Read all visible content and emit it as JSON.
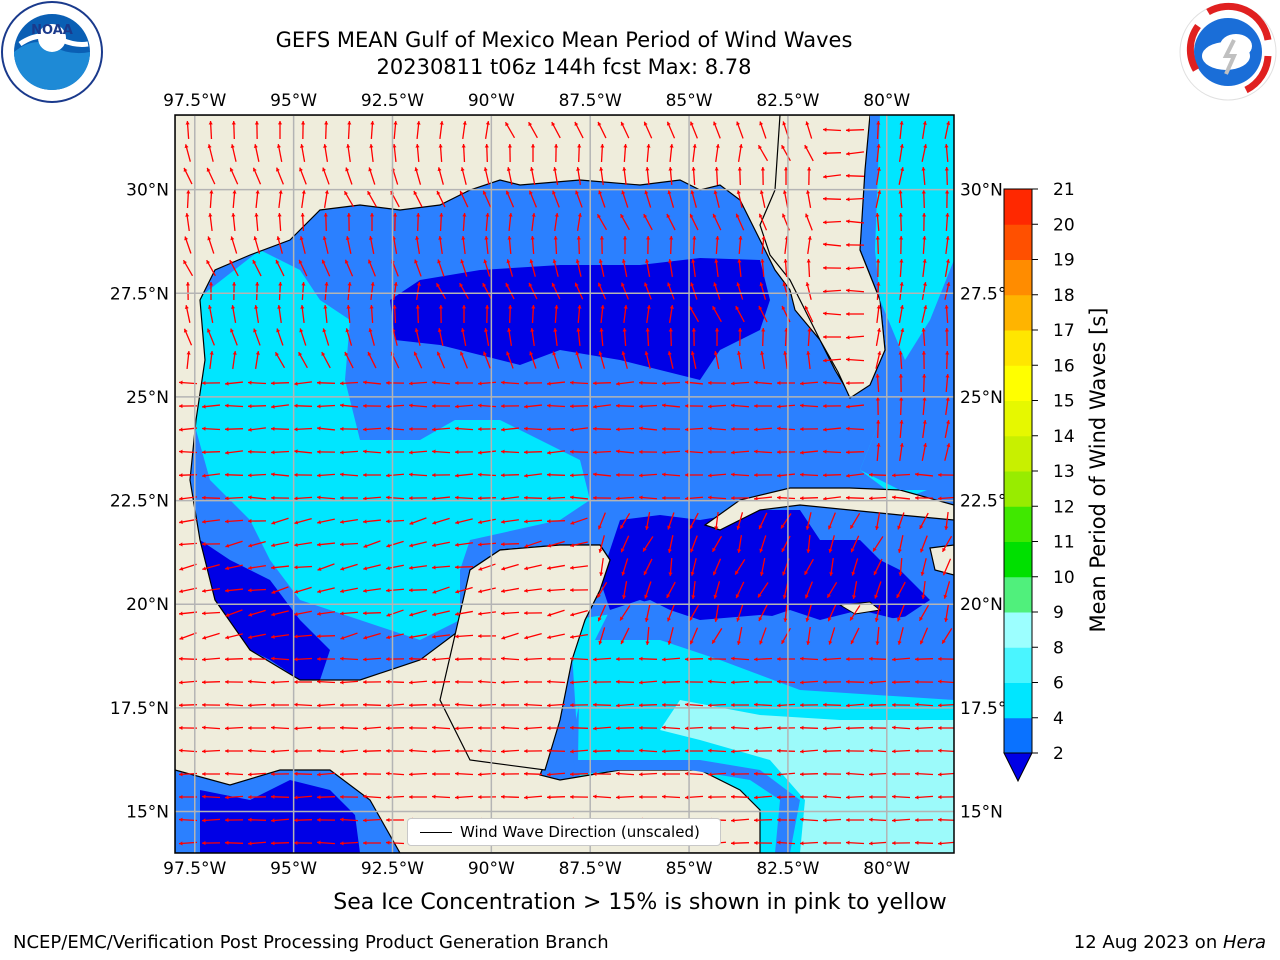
{
  "header": {
    "title_line1": "GEFS MEAN Gulf of Mexico Mean Period of Wind Waves",
    "title_line2": "20230811 t06z 144h fcst   Max: 8.78"
  },
  "logos": {
    "left": {
      "name": "noaa-logo",
      "text": "NOAA",
      "ring_text": "NATIONAL OCEANIC AND ATMOSPHERIC ADMINISTRATION · U.S. DEPARTMENT OF COMMERCE"
    },
    "right": {
      "name": "nws-logo",
      "ring_text": "NATIONAL WEATHER SERVICE"
    }
  },
  "map": {
    "lon_ticks": [
      "97.5°W",
      "95°W",
      "92.5°W",
      "90°W",
      "87.5°W",
      "85°W",
      "82.5°W",
      "80°W"
    ],
    "lat_ticks": [
      "30°N",
      "27.5°N",
      "25°N",
      "22.5°N",
      "20°N",
      "17.5°N",
      "15°N"
    ],
    "lon_range": [
      -98,
      -78.3
    ],
    "lat_range": [
      14,
      31.8
    ],
    "legend": "Wind Wave Direction (unscaled)"
  },
  "colorbar": {
    "label": "Mean Period of Wind Waves [s]",
    "ticks": [
      "2",
      "4",
      "6",
      "8",
      "9",
      "10",
      "11",
      "12",
      "13",
      "14",
      "15",
      "16",
      "17",
      "18",
      "19",
      "20",
      "21"
    ],
    "colors": [
      "#0a72ff",
      "#00e6ff",
      "#4af5ff",
      "#9cffff",
      "#50f07c",
      "#00e000",
      "#40e800",
      "#98ec00",
      "#c8f000",
      "#e6f800",
      "#ffff00",
      "#ffe600",
      "#ffb400",
      "#ff8c00",
      "#ff5000",
      "#ff2800",
      "#ff0000"
    ],
    "extend_color": "#0000e6"
  },
  "colors": {
    "land": "#efeddc",
    "band_2_4": "#2b80ff",
    "band_lt2": "#0000e6",
    "band_4_6": "#00e6ff",
    "band_6_8": "#9cfafa",
    "arrow": "#ff0000"
  },
  "notes": {
    "ice": "Sea Ice Concentration > 15% is shown in pink to yellow",
    "footer_left": "NCEP/EMC/Verification Post Processing Product Generation Branch",
    "footer_date": "12 Aug 2023 on ",
    "footer_host": "Hera"
  }
}
